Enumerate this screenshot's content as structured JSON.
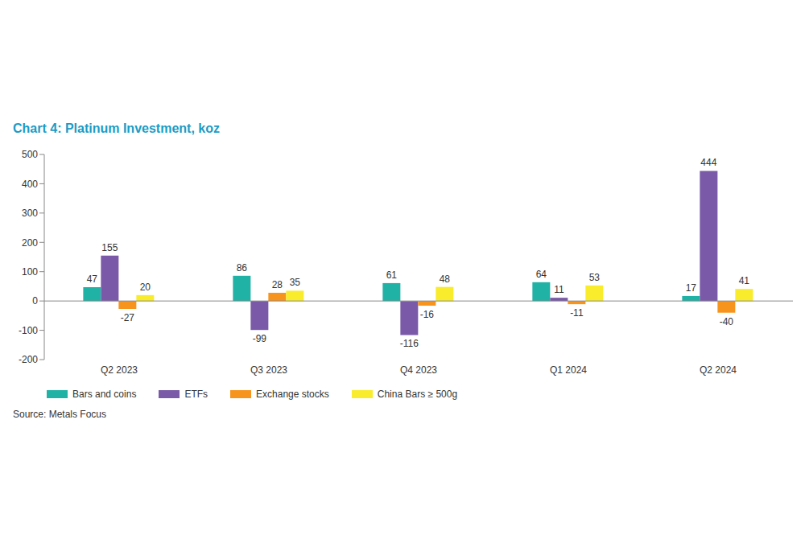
{
  "chart_data": {
    "type": "bar",
    "title": "Chart 4: Platinum Investment, koz",
    "source": "Source: Metals Focus",
    "categories": [
      "Q2 2023",
      "Q3 2023",
      "Q4 2023",
      "Q1 2024",
      "Q2 2024"
    ],
    "series": [
      {
        "name": "Bars and coins",
        "color": "#21b2a6",
        "values": [
          47,
          86,
          61,
          64,
          17
        ]
      },
      {
        "name": "ETFs",
        "color": "#7a5aa8",
        "values": [
          155,
          -99,
          -116,
          11,
          444
        ]
      },
      {
        "name": "Exchange stocks",
        "color": "#f7941d",
        "values": [
          -27,
          28,
          -16,
          -11,
          -40
        ]
      },
      {
        "name": "China Bars ≥ 500g",
        "color": "#f8ec2c",
        "values": [
          20,
          35,
          48,
          53,
          41
        ]
      }
    ],
    "ylim": [
      -200,
      500
    ],
    "yticks": [
      -200,
      -100,
      0,
      100,
      200,
      300,
      400,
      500
    ],
    "grid": false,
    "legend": "bottom",
    "data_labels": true
  }
}
